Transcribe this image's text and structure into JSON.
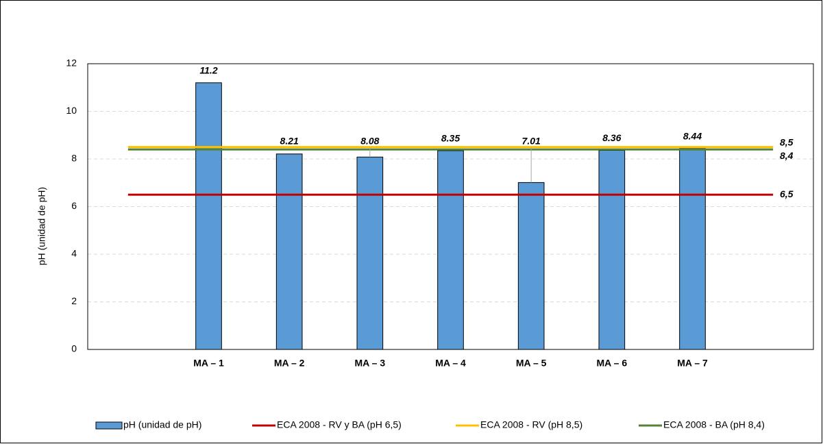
{
  "chart_data": {
    "type": "bar",
    "ylabel": "pH (unidad de pH)",
    "categories": [
      null,
      "MA – 1",
      "MA – 2",
      "MA – 3",
      "MA – 4",
      "MA – 5",
      "MA – 6",
      "MA – 7",
      null
    ],
    "series": [
      {
        "name": "pH (unidad de pH)",
        "type": "bar",
        "color": "#5b9bd5",
        "values": [
          null,
          11.2,
          8.21,
          8.08,
          8.35,
          7.01,
          8.36,
          8.44,
          null
        ]
      },
      {
        "name": "ECA 2008 - RV y BA (pH 6,5)",
        "type": "line",
        "color": "#c00000",
        "values": [
          6.5,
          6.5,
          6.5,
          6.5,
          6.5,
          6.5,
          6.5,
          6.5,
          6.5
        ],
        "value_labels": [
          null,
          null,
          null,
          null,
          null,
          null,
          null,
          null,
          "6,5"
        ]
      },
      {
        "name": "ECA 2008 - RV (pH 8,5)",
        "type": "line",
        "color": "#ffc000",
        "values": [
          8.5,
          8.5,
          8.5,
          8.5,
          8.5,
          8.5,
          8.5,
          8.5,
          8.5
        ],
        "value_labels": [
          null,
          null,
          null,
          null,
          null,
          null,
          null,
          null,
          "8,5"
        ]
      },
      {
        "name": "ECA 2008 - BA (pH 8,4)",
        "type": "line",
        "color": "#548235",
        "values": [
          8.4,
          8.4,
          8.4,
          8.4,
          8.4,
          8.4,
          8.4,
          8.4,
          8.4
        ],
        "value_labels": [
          null,
          null,
          null,
          null,
          null,
          null,
          null,
          null,
          "8,4"
        ]
      }
    ],
    "ylim": [
      0,
      12
    ],
    "yticks": [
      0,
      2,
      4,
      6,
      8,
      10,
      12
    ],
    "grid": true,
    "legend": "bottom"
  }
}
